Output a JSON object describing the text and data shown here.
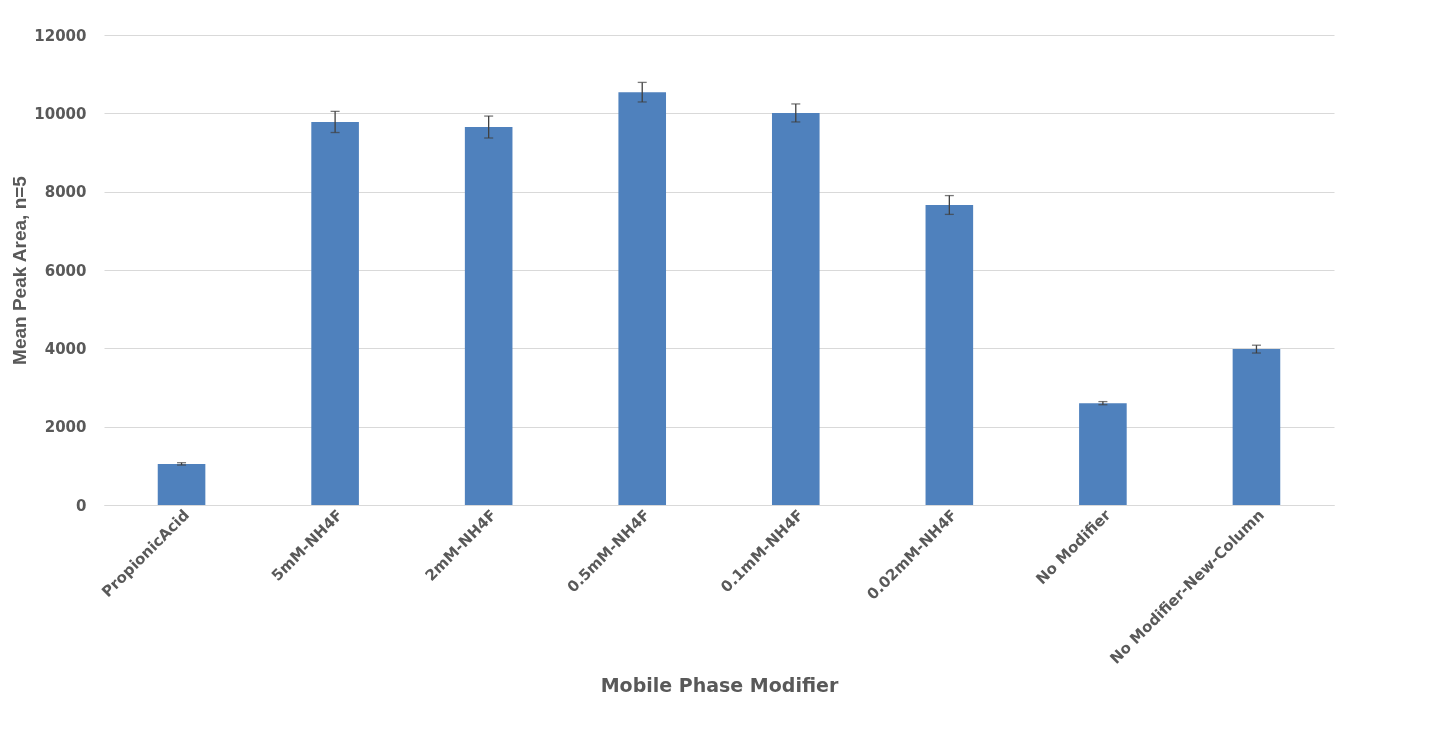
{
  "chart_data": {
    "type": "bar",
    "xlabel": "Mobile Phase Modifier",
    "ylabel": "Mean Peak Area, n=5",
    "categories": [
      "PropionicAcid",
      "5mM-NH4F",
      "2mM-NH4F",
      "0.5mM-NH4F",
      "0.1mM-NH4F",
      "0.02mM-NH4F",
      "No Modifier",
      "No Modifier-New-Column"
    ],
    "values": [
      1050,
      9780,
      9650,
      10540,
      10010,
      7660,
      2600,
      3980
    ],
    "errors": [
      30,
      270,
      280,
      250,
      230,
      240,
      40,
      100
    ],
    "color": "#4f81bd",
    "ylim": [
      0,
      12000
    ],
    "yticks": [
      0,
      2000,
      4000,
      6000,
      8000,
      10000,
      12000
    ],
    "grid": "y"
  }
}
